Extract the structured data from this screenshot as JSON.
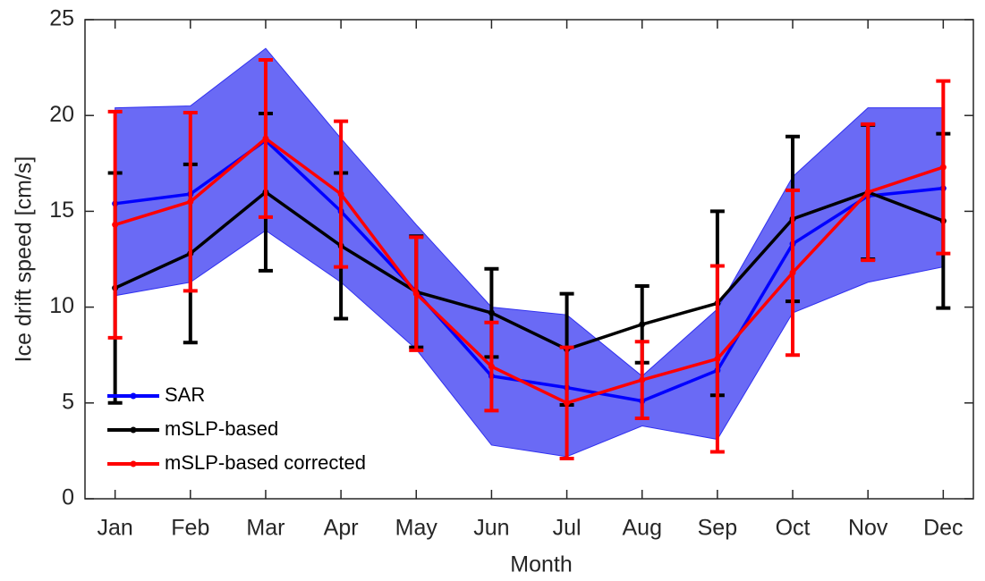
{
  "chart_data": {
    "type": "line",
    "x_label": "Month",
    "y_label": "Ice drift speed [cm/s]",
    "categories": [
      "Jan",
      "Feb",
      "Mar",
      "Apr",
      "May",
      "Jun",
      "Jul",
      "Aug",
      "Sep",
      "Oct",
      "Nov",
      "Dec"
    ],
    "ylim": [
      0,
      25
    ],
    "yticks": [
      0,
      5,
      10,
      15,
      20,
      25
    ],
    "legend": "lower left",
    "band_color": "#6a6af5",
    "series": [
      {
        "name": "SAR",
        "color": "#0000ff",
        "values": [
          15.4,
          15.9,
          18.7,
          15.0,
          10.8,
          6.4,
          5.8,
          5.1,
          6.7,
          13.3,
          15.8,
          16.2
        ],
        "band_high": [
          20.4,
          20.5,
          23.5,
          18.8,
          14.3,
          10.0,
          9.6,
          6.4,
          9.9,
          16.8,
          20.4,
          20.4
        ],
        "band_low": [
          10.6,
          11.3,
          14.0,
          11.3,
          7.8,
          2.8,
          2.2,
          3.8,
          3.1,
          9.7,
          11.3,
          12.1
        ]
      },
      {
        "name": "mSLP-based",
        "color": "#000000",
        "values": [
          11.0,
          12.8,
          16.0,
          13.2,
          10.8,
          9.7,
          7.8,
          9.1,
          10.2,
          14.6,
          16.0,
          14.5
        ],
        "errors": [
          6.0,
          4.65,
          4.1,
          3.8,
          2.9,
          2.3,
          2.9,
          2.0,
          4.8,
          4.3,
          3.5,
          4.55
        ]
      },
      {
        "name": "mSLP-based corrected",
        "color": "#ff0000",
        "values": [
          14.3,
          15.5,
          18.8,
          15.9,
          10.7,
          6.9,
          5.0,
          6.2,
          7.3,
          11.8,
          16.0,
          17.3
        ],
        "errors": [
          5.9,
          4.65,
          4.1,
          3.8,
          2.95,
          2.3,
          2.9,
          2.0,
          4.85,
          4.3,
          3.55,
          4.5
        ]
      }
    ]
  }
}
